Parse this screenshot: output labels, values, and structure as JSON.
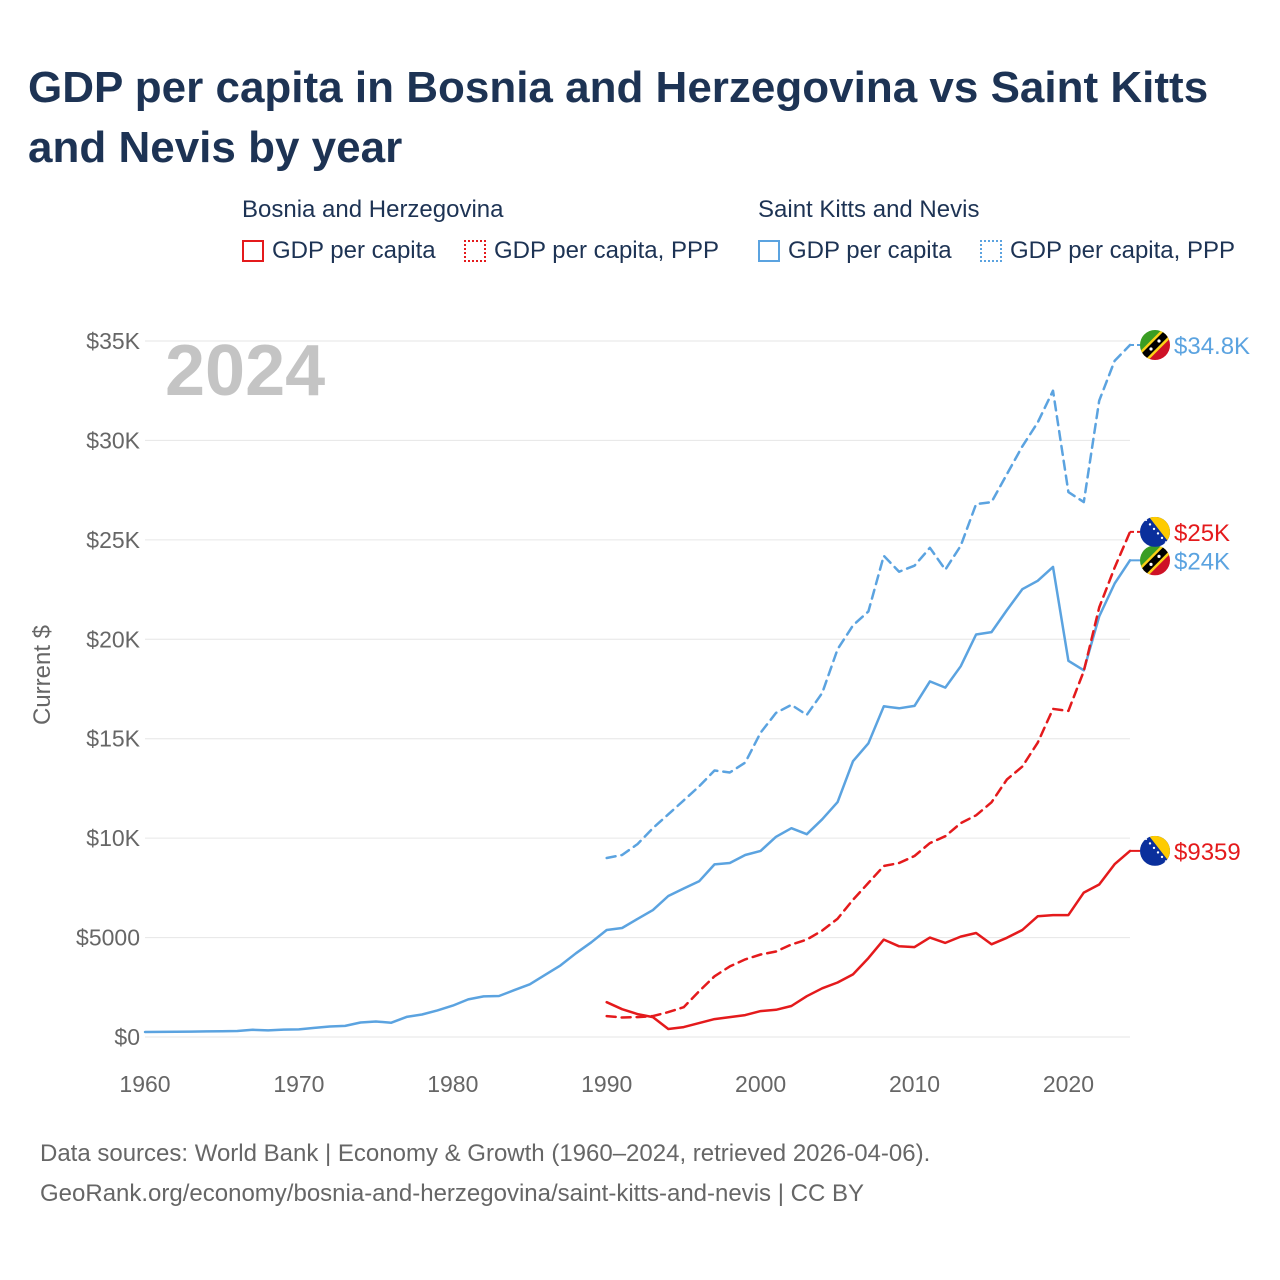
{
  "title": "GDP per capita in Bosnia and Herzegovina vs Saint Kitts and Nevis by year",
  "legend": {
    "groups": [
      {
        "name": "Bosnia and Herzegovina",
        "items": [
          {
            "label": "GDP per capita",
            "color": "#e41a1c",
            "style": "solid"
          },
          {
            "label": "GDP per capita, PPP",
            "color": "#e41a1c",
            "style": "dotted"
          }
        ]
      },
      {
        "name": "Saint Kitts and Nevis",
        "items": [
          {
            "label": "GDP per capita",
            "color": "#5ba3e0",
            "style": "solid"
          },
          {
            "label": "GDP per capita, PPP",
            "color": "#5ba3e0",
            "style": "dotted"
          }
        ]
      }
    ]
  },
  "footer": {
    "line1": "Data sources: World Bank | Economy & Growth (1960–2024, retrieved 2026-04-06).",
    "line2": "GeoRank.org/economy/bosnia-and-herzegovina/saint-kitts-and-nevis | CC BY"
  },
  "chart_data": {
    "type": "line",
    "title": "GDP per capita in Bosnia and Herzegovina vs Saint Kitts and Nevis by year",
    "xlabel": "",
    "ylabel": "Current $",
    "year_label": "2024",
    "xlim": [
      1960,
      2024
    ],
    "ylim": [
      0,
      35000
    ],
    "x_ticks": [
      "1960",
      "1970",
      "1980",
      "1990",
      "2000",
      "2010",
      "2020"
    ],
    "y_ticks": [
      "$0",
      "$5000",
      "$10K",
      "$15K",
      "$20K",
      "$25K",
      "$30K",
      "$35K"
    ],
    "grid": true,
    "series": [
      {
        "name": "Saint Kitts and Nevis — GDP per capita, PPP",
        "color": "#5ba3e0",
        "dash": "dashed",
        "end_label": "$34.8K",
        "x": [
          1990,
          1991,
          1992,
          1993,
          1994,
          1995,
          1996,
          1997,
          1998,
          1999,
          2000,
          2001,
          2002,
          2003,
          2004,
          2005,
          2006,
          2007,
          2008,
          2009,
          2010,
          2011,
          2012,
          2013,
          2014,
          2015,
          2016,
          2017,
          2018,
          2019,
          2020,
          2021,
          2022,
          2023,
          2024
        ],
        "y": [
          9000,
          9150,
          9700,
          10500,
          11200,
          11900,
          12600,
          13400,
          13300,
          13800,
          15300,
          16300,
          16700,
          16200,
          17300,
          19500,
          20700,
          21400,
          24200,
          23400,
          23700,
          24600,
          23500,
          24700,
          26800,
          26900,
          28300,
          29700,
          30900,
          32500,
          27400,
          26900,
          32000,
          34000,
          34800
        ]
      },
      {
        "name": "Saint Kitts and Nevis — GDP per capita",
        "color": "#5ba3e0",
        "dash": "solid",
        "end_label": "$24K",
        "x": [
          1960,
          1961,
          1962,
          1963,
          1964,
          1965,
          1966,
          1967,
          1968,
          1969,
          1970,
          1971,
          1972,
          1973,
          1974,
          1975,
          1976,
          1977,
          1978,
          1979,
          1980,
          1981,
          1982,
          1983,
          1984,
          1985,
          1986,
          1987,
          1988,
          1989,
          1990,
          1991,
          1992,
          1993,
          1994,
          1995,
          1996,
          1997,
          1998,
          1999,
          2000,
          2001,
          2002,
          2003,
          2004,
          2005,
          2006,
          2007,
          2008,
          2009,
          2010,
          2011,
          2012,
          2013,
          2014,
          2015,
          2016,
          2017,
          2018,
          2019,
          2020,
          2021,
          2022,
          2023,
          2024
        ],
        "y": [
          250,
          255,
          260,
          270,
          280,
          290,
          300,
          360,
          330,
          370,
          380,
          460,
          530,
          560,
          730,
          780,
          720,
          1010,
          1130,
          1340,
          1580,
          1890,
          2040,
          2060,
          2360,
          2650,
          3130,
          3600,
          4210,
          4760,
          5380,
          5480,
          5940,
          6380,
          7090,
          7470,
          7830,
          8680,
          8750,
          9150,
          9360,
          10070,
          10500,
          10200,
          10950,
          11810,
          13870,
          14770,
          16630,
          16530,
          16650,
          17880,
          17570,
          18640,
          20240,
          20360,
          21470,
          22520,
          22940,
          23640,
          18920,
          18440,
          21150,
          22800,
          23970
        ]
      },
      {
        "name": "Bosnia and Herzegovina — GDP per capita, PPP",
        "color": "#e41a1c",
        "dash": "dashed",
        "end_label": "$25K",
        "x": [
          1990,
          1991,
          1992,
          1993,
          1994,
          1995,
          1996,
          1997,
          1998,
          1999,
          2000,
          2001,
          2002,
          2003,
          2004,
          2005,
          2006,
          2007,
          2008,
          2009,
          2010,
          2011,
          2012,
          2013,
          2014,
          2015,
          2016,
          2017,
          2018,
          2019,
          2020,
          2021,
          2022,
          2023,
          2024
        ],
        "y": [
          1050,
          980,
          1000,
          1050,
          1250,
          1500,
          2300,
          3050,
          3550,
          3900,
          4150,
          4300,
          4650,
          4900,
          5350,
          5950,
          6900,
          7750,
          8600,
          8750,
          9100,
          9750,
          10100,
          10750,
          11150,
          11800,
          12950,
          13600,
          14800,
          16500,
          16400,
          18400,
          21600,
          23600,
          25400
        ]
      },
      {
        "name": "Bosnia and Herzegovina — GDP per capita",
        "color": "#e41a1c",
        "dash": "solid",
        "end_label": "$9359",
        "x": [
          1990,
          1991,
          1992,
          1993,
          1994,
          1995,
          1996,
          1997,
          1998,
          1999,
          2000,
          2001,
          2002,
          2003,
          2004,
          2005,
          2006,
          2007,
          2008,
          2009,
          2010,
          2011,
          2012,
          2013,
          2014,
          2015,
          2016,
          2017,
          2018,
          2019,
          2020,
          2021,
          2022,
          2023,
          2024
        ],
        "y": [
          1750,
          1400,
          1150,
          1000,
          400,
          500,
          700,
          900,
          1000,
          1100,
          1300,
          1370,
          1560,
          2050,
          2450,
          2740,
          3150,
          3970,
          4900,
          4560,
          4520,
          5000,
          4730,
          5050,
          5230,
          4660,
          4990,
          5380,
          6070,
          6130,
          6130,
          7260,
          7670,
          8690,
          9359
        ]
      }
    ]
  }
}
